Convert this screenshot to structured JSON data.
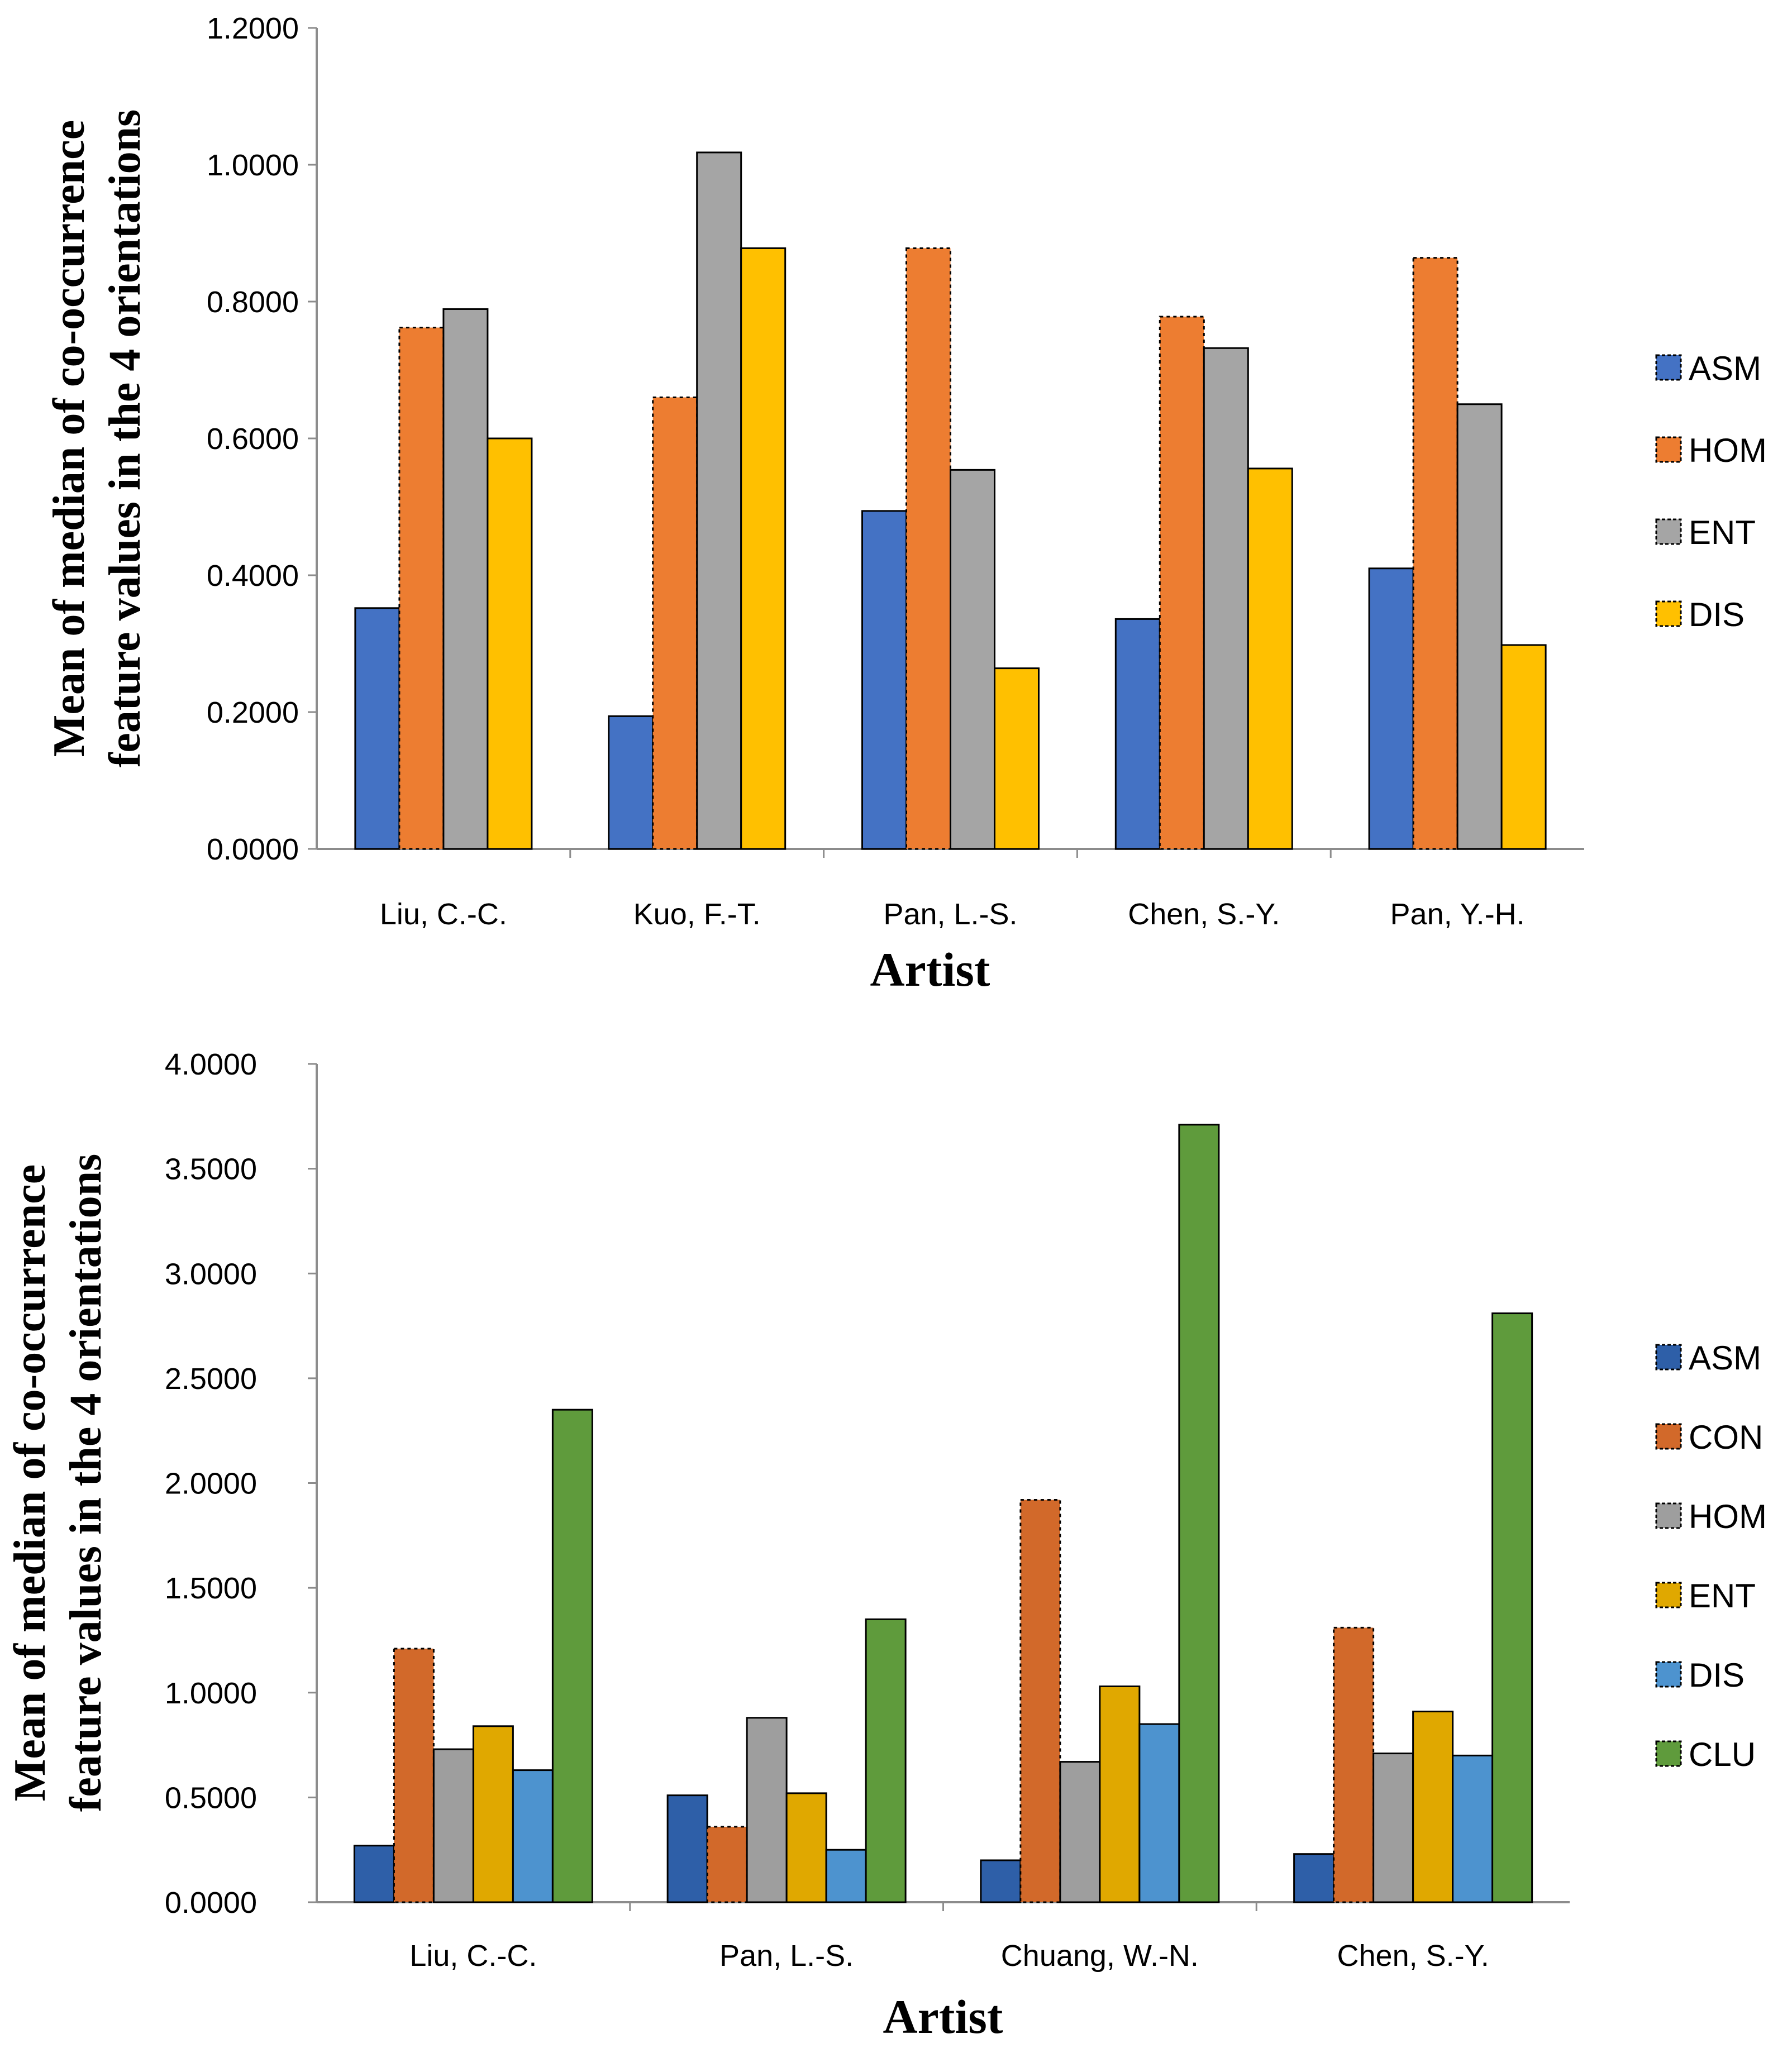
{
  "chart_data": [
    {
      "type": "bar",
      "title": "",
      "xlabel": "Artist",
      "ylabel_lines": [
        "Mean of median of co-occurrence",
        "feature values in the 4 orientations"
      ],
      "ylim": [
        0,
        1.2
      ],
      "yticks": [
        "0.0000",
        "0.2000",
        "0.4000",
        "0.6000",
        "0.8000",
        "1.0000",
        "1.2000"
      ],
      "categories": [
        "Liu, C.-C.",
        "Kuo, F.-T.",
        "Pan, L.-S.",
        "Chen, S.-Y.",
        "Pan, Y.-H."
      ],
      "grid": false,
      "legend_position": "right",
      "series": [
        {
          "name": "ASM",
          "color": "#4472C4",
          "values": [
            0.352,
            0.194,
            0.494,
            0.336,
            0.41
          ]
        },
        {
          "name": "HOM",
          "color": "#ED7D31",
          "values": [
            0.762,
            0.66,
            0.878,
            0.778,
            0.864
          ]
        },
        {
          "name": "ENT",
          "color": "#A5A5A5",
          "values": [
            0.789,
            1.018,
            0.554,
            0.732,
            0.65
          ]
        },
        {
          "name": "DIS",
          "color": "#FFC000",
          "values": [
            0.6,
            0.878,
            0.264,
            0.556,
            0.298
          ]
        }
      ]
    },
    {
      "type": "bar",
      "title": "",
      "xlabel": "Artist",
      "ylabel_lines": [
        "Mean of median of co-occurrence",
        "feature values in the 4 orientations"
      ],
      "ylim": [
        0,
        4.0
      ],
      "yticks": [
        "0.0000",
        "0.5000",
        "1.0000",
        "1.5000",
        "2.0000",
        "2.5000",
        "3.0000",
        "3.5000",
        "4.0000"
      ],
      "categories": [
        "Liu, C.-C.",
        "Pan, L.-S.",
        "Chuang, W.-N.",
        "Chen, S.-Y."
      ],
      "grid": false,
      "legend_position": "right",
      "series": [
        {
          "name": "ASM",
          "color": "#2E5FA8",
          "values": [
            0.27,
            0.51,
            0.2,
            0.23
          ]
        },
        {
          "name": "CON",
          "color": "#D2692A",
          "values": [
            1.21,
            0.36,
            1.92,
            1.31
          ]
        },
        {
          "name": "HOM",
          "color": "#9E9E9E",
          "values": [
            0.73,
            0.88,
            0.67,
            0.71
          ]
        },
        {
          "name": "ENT",
          "color": "#E0A800",
          "values": [
            0.84,
            0.52,
            1.03,
            0.91
          ]
        },
        {
          "name": "DIS",
          "color": "#4D93CF",
          "values": [
            0.63,
            0.25,
            0.85,
            0.7
          ]
        },
        {
          "name": "CLU",
          "color": "#5F9B3C",
          "values": [
            2.35,
            1.35,
            3.71,
            2.81
          ]
        }
      ]
    }
  ]
}
